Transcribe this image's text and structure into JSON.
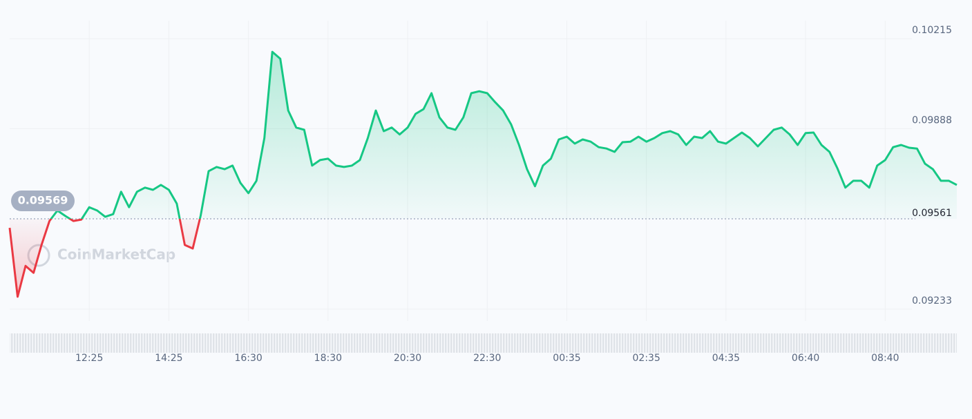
{
  "chart_data": {
    "type": "line",
    "watermark": "CoinMarketCap",
    "open_value": 0.09569,
    "reference": 0.09561,
    "up_color": "#16c784",
    "down_color": "#ea3943",
    "ylim": [
      0.0919,
      0.1028
    ],
    "yticks": [
      0.09233,
      0.09888,
      0.10215
    ],
    "grid": true,
    "categories": [
      null,
      null,
      null,
      null,
      null,
      null,
      null,
      null,
      null,
      null,
      "12:25",
      null,
      null,
      null,
      null,
      null,
      null,
      null,
      null,
      null,
      "14:25",
      null,
      null,
      null,
      null,
      null,
      null,
      null,
      null,
      null,
      "16:30",
      null,
      null,
      null,
      null,
      null,
      null,
      null,
      null,
      null,
      "18:30",
      null,
      null,
      null,
      null,
      null,
      null,
      null,
      null,
      null,
      "20:30",
      null,
      null,
      null,
      null,
      null,
      null,
      null,
      null,
      null,
      "22:30",
      null,
      null,
      null,
      null,
      null,
      null,
      null,
      null,
      null,
      "00:35",
      null,
      null,
      null,
      null,
      null,
      null,
      null,
      null,
      null,
      "02:35",
      null,
      null,
      null,
      null,
      null,
      null,
      null,
      null,
      null,
      "04:35",
      null,
      null,
      null,
      null,
      null,
      null,
      null,
      null,
      null,
      "06:40",
      null,
      null,
      null,
      null,
      null,
      null,
      null,
      null,
      null,
      "08:40",
      null,
      null,
      null,
      null,
      null,
      null,
      null,
      null,
      null
    ],
    "values": [
      0.09528,
      0.09278,
      0.0939,
      0.09365,
      0.09466,
      0.09553,
      0.09591,
      0.09571,
      0.09553,
      0.09558,
      0.09603,
      0.09591,
      0.09568,
      0.09578,
      0.09659,
      0.09603,
      0.09659,
      0.09674,
      0.09666,
      0.09684,
      0.09666,
      0.09616,
      0.09466,
      0.09453,
      0.09573,
      0.09734,
      0.09749,
      0.09741,
      0.09754,
      0.09691,
      0.09654,
      0.09699,
      0.09854,
      0.10167,
      0.10142,
      0.09954,
      0.09892,
      0.09884,
      0.09754,
      0.09774,
      0.09779,
      0.09754,
      0.09749,
      0.09754,
      0.09774,
      0.09854,
      0.09954,
      0.09879,
      0.09892,
      0.09867,
      0.09892,
      0.09942,
      0.09959,
      0.10017,
      0.09929,
      0.09892,
      0.09884,
      0.09929,
      0.10017,
      0.10024,
      0.10017,
      0.09984,
      0.09954,
      0.09904,
      0.09829,
      0.09741,
      0.09679,
      0.09754,
      0.09779,
      0.09849,
      0.09859,
      0.09834,
      0.09849,
      0.09841,
      0.09821,
      0.09816,
      0.09804,
      0.09839,
      0.09841,
      0.09859,
      0.09841,
      0.09854,
      0.09872,
      0.09879,
      0.09867,
      0.09829,
      0.09859,
      0.09854,
      0.09879,
      0.09841,
      0.09834,
      0.09854,
      0.09874,
      0.09854,
      0.09824,
      0.09854,
      0.09884,
      0.09892,
      0.09867,
      0.09829,
      0.09872,
      0.09874,
      0.09829,
      0.09804,
      0.09744,
      0.09674,
      0.09699,
      0.09699,
      0.09674,
      0.09754,
      0.09774,
      0.09821,
      0.09829,
      0.09819,
      0.09816,
      0.09761,
      0.09741,
      0.09699,
      0.09699,
      0.09684
    ]
  }
}
